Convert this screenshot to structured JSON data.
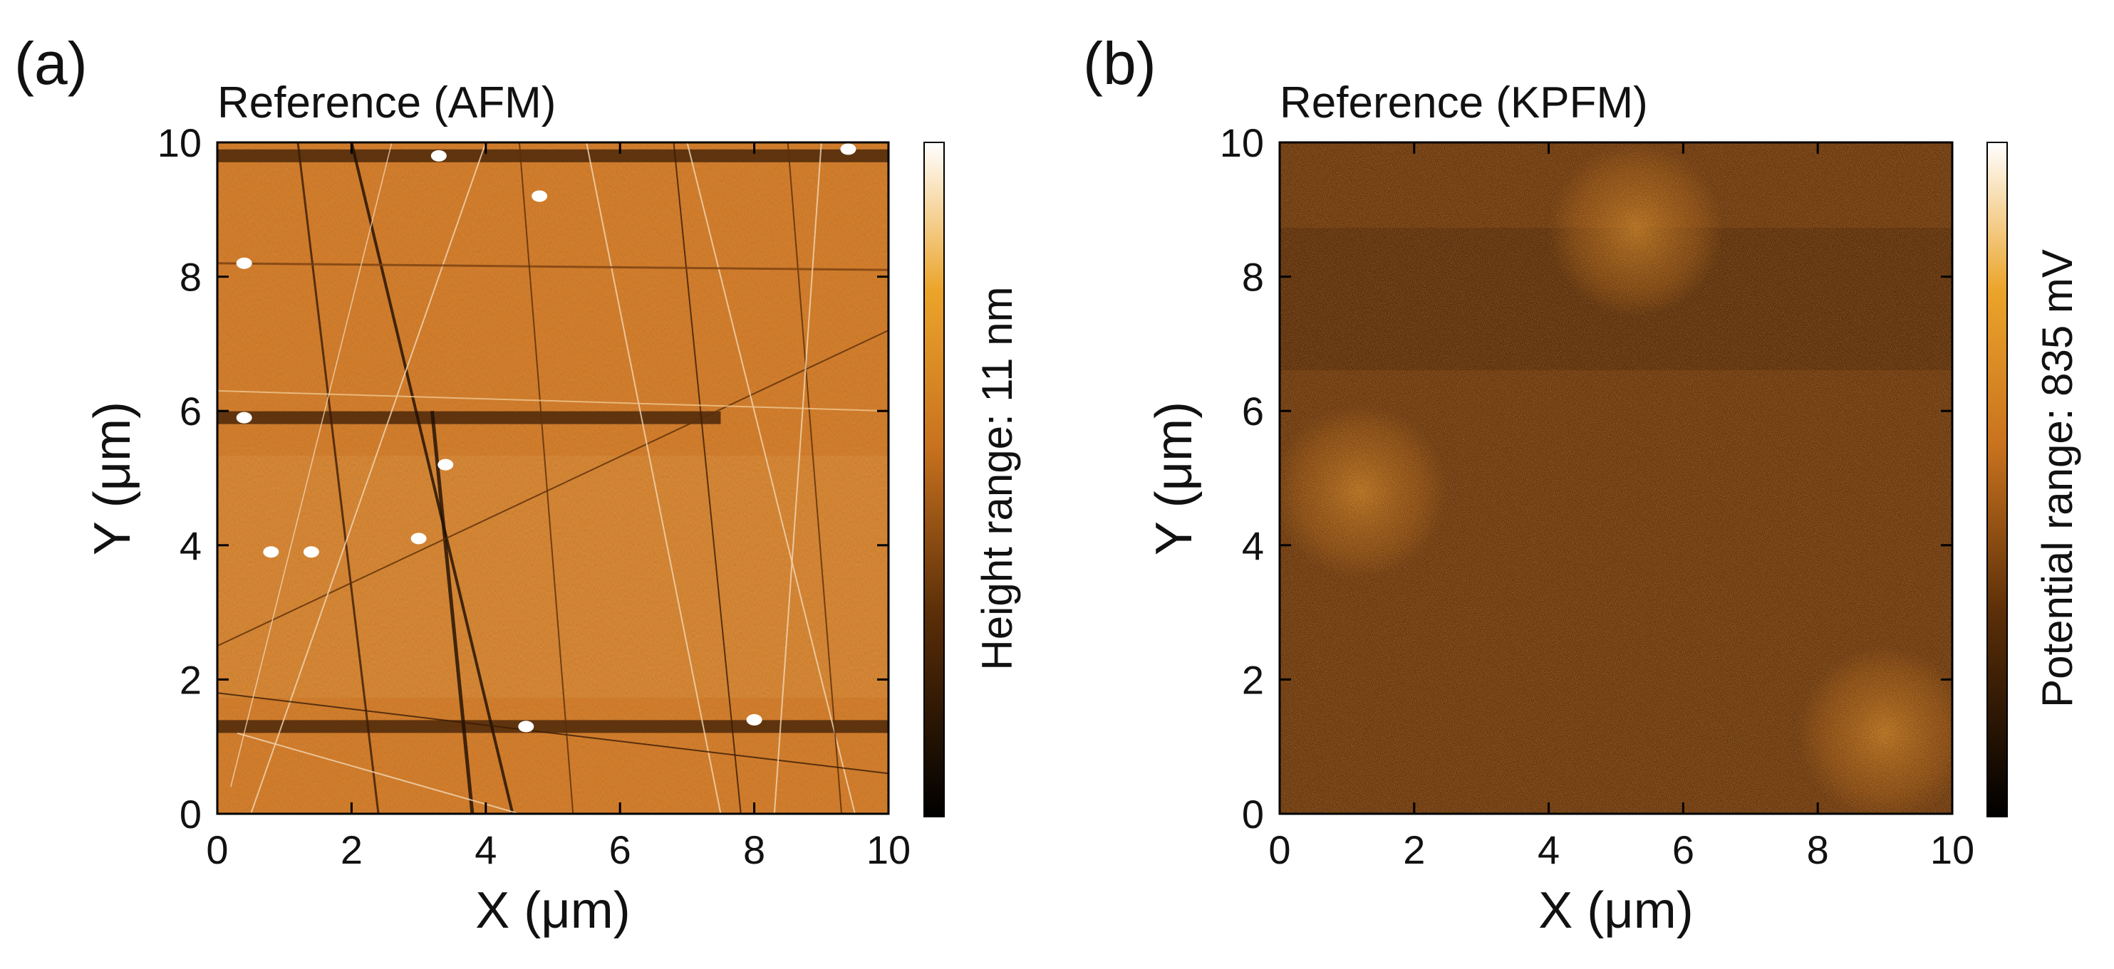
{
  "chart_data": [
    {
      "type": "heatmap",
      "panel_label": "(a)",
      "title": "Reference (AFM)",
      "xlabel": "X (μm)",
      "ylabel": "Y (μm)",
      "xlim": [
        0,
        10
      ],
      "ylim": [
        0,
        10
      ],
      "xticks": [
        "0",
        "2",
        "4",
        "6",
        "8",
        "10"
      ],
      "yticks": [
        "0",
        "2",
        "4",
        "6",
        "8",
        "10"
      ],
      "colorbar_label": "Height range: 11 nm",
      "colormap": [
        "#000000",
        "#5a2e08",
        "#c8721e",
        "#eba42a",
        "#ffffff"
      ],
      "base_color": "#d57e2c",
      "features": {
        "dark_horizontal_bands_y": [
          9.8,
          5.9,
          1.3
        ],
        "bright_particles": [
          [
            3.3,
            9.8
          ],
          [
            4.8,
            9.2
          ],
          [
            0.4,
            8.2
          ],
          [
            0.4,
            5.9
          ],
          [
            3.4,
            5.2
          ],
          [
            1.4,
            3.9
          ],
          [
            3.0,
            4.1
          ],
          [
            0.8,
            3.9
          ],
          [
            4.6,
            1.3
          ],
          [
            8.0,
            1.4
          ],
          [
            9.4,
            9.9
          ]
        ]
      }
    },
    {
      "type": "heatmap",
      "panel_label": "(b)",
      "title": "Reference (KPFM)",
      "xlabel": "X (μm)",
      "ylabel": "Y (μm)",
      "xlim": [
        0,
        10
      ],
      "ylim": [
        0,
        10
      ],
      "xticks": [
        "0",
        "2",
        "4",
        "6",
        "8",
        "10"
      ],
      "yticks": [
        "0",
        "2",
        "4",
        "6",
        "8",
        "10"
      ],
      "colorbar_label": "Potential range: 835 mV",
      "colormap": [
        "#000000",
        "#5a2e08",
        "#c8721e",
        "#eba42a",
        "#ffffff"
      ],
      "base_color": "#6e3710",
      "features": {
        "bright_domains": [
          [
            5.3,
            8.7
          ],
          [
            1.2,
            4.8
          ],
          [
            9.0,
            1.2
          ]
        ],
        "dark_band_y": 8.0
      }
    }
  ]
}
